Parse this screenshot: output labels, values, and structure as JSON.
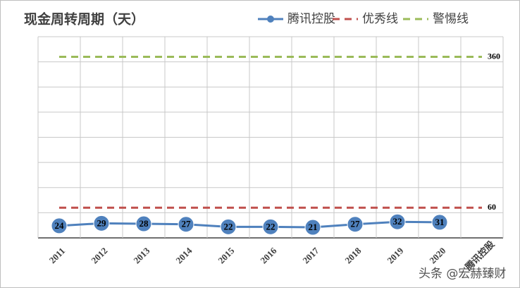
{
  "chart_data": {
    "type": "line",
    "title": "现金周转周期（天）",
    "categories": [
      "2011",
      "2012",
      "2013",
      "2014",
      "2015",
      "2016",
      "2017",
      "2018",
      "2019",
      "2020",
      "腾讯控股"
    ],
    "series": [
      {
        "name": "腾讯控股",
        "color": "#4f81bd",
        "style": "solid-marker",
        "values": [
          24,
          29,
          28,
          27,
          22,
          22,
          21,
          27,
          32,
          31,
          null
        ]
      },
      {
        "name": "优秀线",
        "color": "#c0504d",
        "style": "dashed",
        "values": [
          60,
          60,
          60,
          60,
          60,
          60,
          60,
          60,
          60,
          60,
          60
        ]
      },
      {
        "name": "警惕线",
        "color": "#9bbb59",
        "style": "dashed",
        "values": [
          360,
          360,
          360,
          360,
          360,
          360,
          360,
          360,
          360,
          360,
          360
        ]
      }
    ],
    "ylim": [
      0,
      400
    ],
    "yticks": [
      0,
      50,
      100,
      150,
      200,
      250,
      300,
      350,
      400
    ],
    "grid": true,
    "legend": "top-right",
    "watermark": "头条 @宏赫臻财"
  }
}
